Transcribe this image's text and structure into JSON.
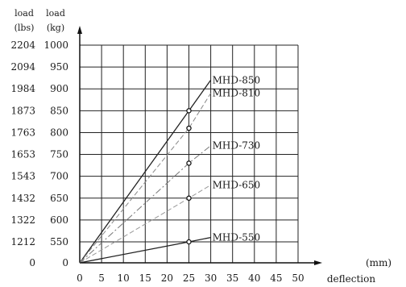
{
  "chart_data": {
    "type": "line",
    "y_headers": {
      "lbs_top": "load",
      "lbs_bottom": "(lbs)",
      "kg_top": "load",
      "kg_bottom": "(kg)"
    },
    "xlabel": "deflection",
    "xunit": "(mm)",
    "xlim": [
      0,
      50
    ],
    "ylim": [
      0,
      1000
    ],
    "y_break": {
      "low": 0,
      "high": 500
    },
    "x_ticks": [
      0,
      5,
      10,
      15,
      20,
      25,
      30,
      35,
      40,
      45,
      50
    ],
    "y_ticks_kg": [
      "0",
      "550",
      "600",
      "650",
      "700",
      "750",
      "800",
      "850",
      "900",
      "950",
      "1000"
    ],
    "y_ticks_lbs": [
      "0",
      "1212",
      "1322",
      "1432",
      "1543",
      "1653",
      "1763",
      "1873",
      "1984",
      "2094",
      "2204"
    ],
    "grid": true,
    "series": [
      {
        "name": "MHD-850",
        "x": [
          0,
          25,
          30
        ],
        "y": [
          0,
          850,
          920
        ],
        "marker_at": 25,
        "style": "solid",
        "color": "#222222"
      },
      {
        "name": "MHD-810",
        "x": [
          0,
          25,
          30
        ],
        "y": [
          0,
          810,
          890
        ],
        "marker_at": 25,
        "style": "dash",
        "color": "#888888"
      },
      {
        "name": "MHD-730",
        "x": [
          0,
          25,
          30
        ],
        "y": [
          0,
          730,
          770
        ],
        "marker_at": 25,
        "style": "dashdot",
        "color": "#777777"
      },
      {
        "name": "MHD-650",
        "x": [
          0,
          25,
          30
        ],
        "y": [
          0,
          650,
          680
        ],
        "marker_at": 25,
        "style": "dash",
        "color": "#999999"
      },
      {
        "name": "MHD-550",
        "x": [
          0,
          25,
          30
        ],
        "y": [
          0,
          550,
          560
        ],
        "marker_at": 25,
        "style": "solid",
        "color": "#222222"
      }
    ]
  }
}
